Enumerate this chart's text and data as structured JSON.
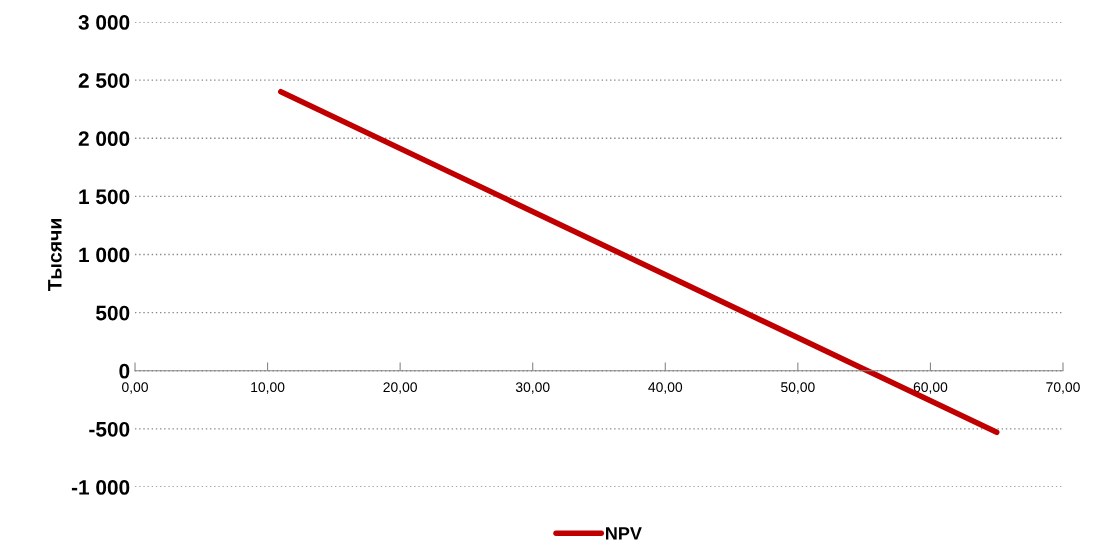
{
  "chart_data": {
    "type": "line",
    "ylabel": "Тысячи",
    "x": [
      11,
      65
    ],
    "series": [
      {
        "name": "NPV",
        "color": "#c00000",
        "values": [
          2400,
          -530
        ]
      }
    ],
    "xlim": [
      0,
      70
    ],
    "xticks": [
      {
        "value": 0,
        "label": "0,00"
      },
      {
        "value": 10,
        "label": "10,00"
      },
      {
        "value": 20,
        "label": "20,00"
      },
      {
        "value": 30,
        "label": "30,00"
      },
      {
        "value": 40,
        "label": "40,00"
      },
      {
        "value": 50,
        "label": "50,00"
      },
      {
        "value": 60,
        "label": "60,00"
      },
      {
        "value": 70,
        "label": "70,00"
      }
    ],
    "ylim": [
      -1000,
      3000
    ],
    "yticks": [
      {
        "value": -1000,
        "label": "-1 000"
      },
      {
        "value": -500,
        "label": "-500"
      },
      0,
      500,
      {
        "value": 1000,
        "label": "1 000"
      },
      {
        "value": 1500,
        "label": "1 500"
      },
      {
        "value": 2000,
        "label": "2 000"
      },
      {
        "value": 2500,
        "label": "2 500"
      },
      {
        "value": 3000,
        "label": "3 000"
      }
    ],
    "grid": "y",
    "legend": "bottom",
    "marker": "none",
    "line_style": "solid"
  }
}
